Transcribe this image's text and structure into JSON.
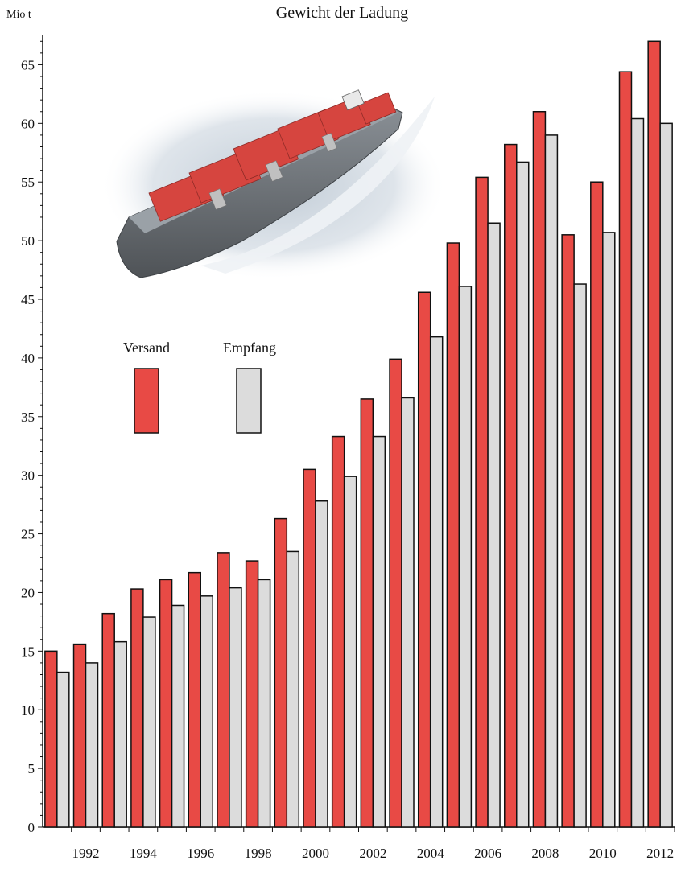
{
  "chart_data": {
    "type": "bar",
    "title": "Gewicht der Ladung",
    "ylabel": "Mio t",
    "xlabel": "",
    "ylim": [
      0,
      67.5
    ],
    "y_ticks": [
      0,
      5,
      10,
      15,
      20,
      25,
      30,
      35,
      40,
      45,
      50,
      55,
      60,
      65
    ],
    "x_tick_labels": [
      "1992",
      "1994",
      "1996",
      "1998",
      "2000",
      "2002",
      "2004",
      "2006",
      "2008",
      "2010",
      "2012"
    ],
    "categories": [
      "1991",
      "1992",
      "1993",
      "1994",
      "1995",
      "1996",
      "1997",
      "1998",
      "1999",
      "2000",
      "2001",
      "2002",
      "2003",
      "2004",
      "2005",
      "2006",
      "2007",
      "2008",
      "2009",
      "2010",
      "2011",
      "2012"
    ],
    "series": [
      {
        "name": "Versand",
        "color": "#e84a45",
        "values": [
          15.0,
          15.6,
          18.2,
          20.3,
          21.1,
          21.7,
          23.4,
          22.7,
          26.3,
          30.5,
          33.3,
          36.5,
          39.9,
          45.6,
          49.8,
          55.4,
          58.2,
          61.0,
          50.5,
          55.0,
          64.4,
          67.0
        ]
      },
      {
        "name": "Empfang",
        "color": "#dcdcdc",
        "values": [
          13.2,
          14.0,
          15.8,
          17.9,
          18.9,
          19.7,
          20.4,
          21.1,
          23.5,
          27.8,
          29.9,
          33.3,
          36.6,
          41.8,
          46.1,
          51.5,
          56.7,
          59.0,
          46.3,
          50.7,
          60.4,
          60.0
        ]
      }
    ],
    "legend": {
      "position": "inside-upper-left",
      "entries": [
        "Versand",
        "Empfang"
      ]
    },
    "grid": false,
    "decoration": "container-ship-icon"
  }
}
